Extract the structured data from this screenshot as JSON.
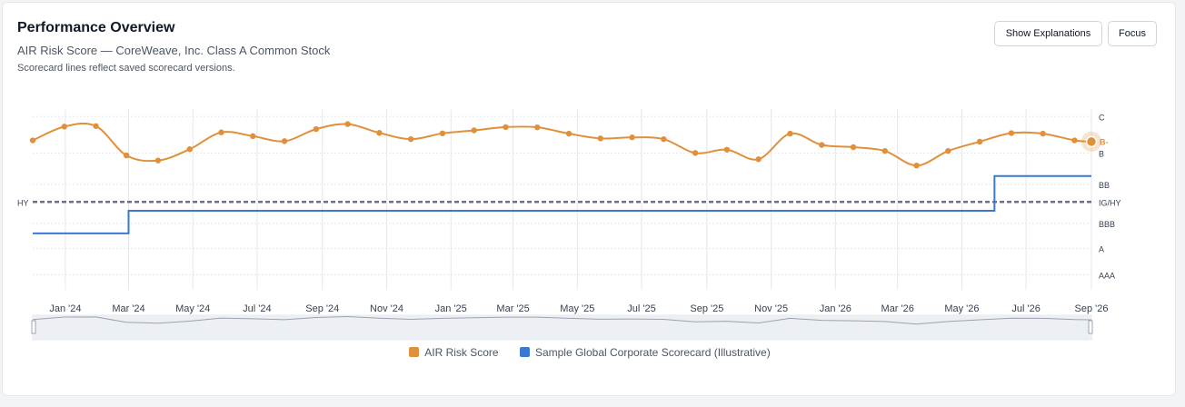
{
  "header": {
    "title": "Performance Overview",
    "subtitle": "AIR Risk Score — CoreWeave, Inc. Class A Common Stock",
    "note": "Scorecard lines reflect saved scorecard versions."
  },
  "toolbar": {
    "explain_label": "Show Explanations",
    "focus_label": "Focus"
  },
  "colors": {
    "air": "#e0903a",
    "scorecard": "#3a78d1",
    "threshold": "#6b7280"
  },
  "chart_data": {
    "type": "line",
    "title": "Performance Overview",
    "subtitle": "AIR Risk Score — CoreWeave, Inc. Class A Common Stock",
    "x_ticks": [
      "Jan '24",
      "Mar '24",
      "May '24",
      "Jul '24",
      "Sep '24",
      "Nov '24",
      "Jan '25",
      "Mar '25",
      "May '25",
      "Jul '25",
      "Sep '25",
      "Nov '25",
      "Jan '26",
      "Mar '26",
      "May '26",
      "Jul '26",
      "Sep '26"
    ],
    "xlim": [
      "2023-12-01",
      "2026-09-01"
    ],
    "y_scale": "rating",
    "y_ticks": [
      {
        "label": "C",
        "value": 1.3
      },
      {
        "label": "B",
        "value": 2.75
      },
      {
        "label": "BB",
        "value": 4.0
      },
      {
        "label": "IG/HY",
        "value": 4.7
      },
      {
        "label": "BBB",
        "value": 5.55
      },
      {
        "label": "A",
        "value": 6.55
      },
      {
        "label": "AAA",
        "value": 7.6
      }
    ],
    "ylim": [
      1.0,
      8.2
    ],
    "threshold": {
      "label": "HY",
      "value": 4.7,
      "style": "dashed"
    },
    "current_label": "B-",
    "series": [
      {
        "name": "AIR Risk Score",
        "x": [
          "2023-12-01",
          "2023-12-31",
          "2024-01-30",
          "2024-02-28",
          "2024-03-29",
          "2024-04-28",
          "2024-05-28",
          "2024-06-27",
          "2024-07-27",
          "2024-08-26",
          "2024-09-25",
          "2024-10-25",
          "2024-11-24",
          "2024-12-24",
          "2025-01-23",
          "2025-02-22",
          "2025-03-24",
          "2025-04-23",
          "2025-05-23",
          "2025-06-22",
          "2025-07-22",
          "2025-08-21",
          "2025-09-20",
          "2025-10-20",
          "2025-11-19",
          "2025-12-19",
          "2026-01-18",
          "2026-02-17",
          "2026-03-19",
          "2026-04-18",
          "2026-05-18",
          "2026-06-17",
          "2026-07-17",
          "2026-08-16",
          "2026-09-01"
        ],
        "values": [
          2.25,
          1.7,
          1.68,
          2.85,
          3.05,
          2.6,
          1.93,
          2.08,
          2.28,
          1.8,
          1.6,
          1.95,
          2.2,
          1.97,
          1.85,
          1.72,
          1.73,
          1.98,
          2.17,
          2.13,
          2.2,
          2.75,
          2.62,
          3.0,
          1.98,
          2.43,
          2.52,
          2.67,
          3.25,
          2.67,
          2.3,
          1.96,
          1.98,
          2.25,
          2.3
        ]
      },
      {
        "name": "Sample Global Corporate Scorecard (Illustrative)",
        "step": true,
        "x": [
          "2023-12-01",
          "2024-03-01",
          "2026-06-01",
          "2026-09-01"
        ],
        "values": [
          5.95,
          5.05,
          3.67,
          3.67
        ]
      }
    ],
    "legend": [
      "AIR Risk Score",
      "Sample Global Corporate Scorecard (Illustrative)"
    ],
    "grid": true,
    "navigator": true
  }
}
